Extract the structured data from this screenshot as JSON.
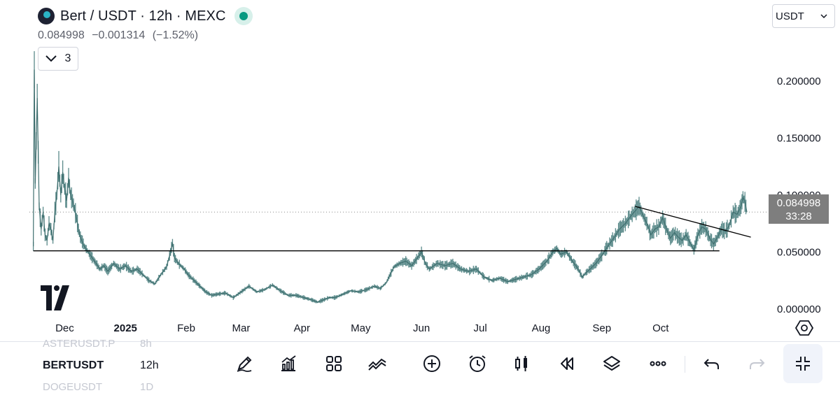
{
  "header": {
    "title": "Bert / USDT · 12h · MEXC",
    "price": "0.084998",
    "change": "−0.001314",
    "change_pct": "(−1.52%)",
    "indicators_count": "3",
    "currency": "USDT",
    "live_color": "#089981"
  },
  "price_tag": {
    "price": "0.084998",
    "countdown": "33:28"
  },
  "toolbar": {
    "symbol": "BERTUSDT",
    "interval": "12h",
    "ghost_above_symbol": "ASTERUSDT.P",
    "ghost_above_interval": "8h",
    "ghost_below_symbol": "DOGEUSDT",
    "ghost_below_interval": "1D",
    "tools": [
      "pencil-icon",
      "chart-icon",
      "grid-icon",
      "compare-icon",
      "add-icon",
      "alarm-icon",
      "candles-icon",
      "replay-icon",
      "layers-icon",
      "more-icon",
      "undo-icon",
      "redo-icon",
      "collapse-icon"
    ]
  },
  "chart_data": {
    "type": "line",
    "title": "",
    "xlabel": "",
    "ylabel": "",
    "ylim": [
      -0.005,
      0.225
    ],
    "y_ticks": [
      0.0,
      0.05,
      0.1,
      0.15,
      0.2
    ],
    "y_tick_labels": [
      "0.000000",
      "0.050000",
      "0.100000",
      "0.150000",
      "0.200000"
    ],
    "x_ticks": [
      {
        "label": "Dec",
        "day": 0,
        "bold": false
      },
      {
        "label": "2025",
        "day": 31,
        "bold": true
      },
      {
        "label": "Feb",
        "day": 62,
        "bold": false
      },
      {
        "label": "Mar",
        "day": 90,
        "bold": false
      },
      {
        "label": "Apr",
        "day": 121,
        "bold": false
      },
      {
        "label": "May",
        "day": 151,
        "bold": false
      },
      {
        "label": "Jun",
        "day": 182,
        "bold": false
      },
      {
        "label": "Jul",
        "day": 212,
        "bold": false
      },
      {
        "label": "Aug",
        "day": 243,
        "bold": false
      },
      {
        "label": "Sep",
        "day": 274,
        "bold": false
      },
      {
        "label": "Oct",
        "day": 304,
        "bold": false
      }
    ],
    "series": [
      {
        "color": "#5a8a8a",
        "points": [
          [
            -16,
            0.055
          ],
          [
            -15.5,
            0.21
          ],
          [
            -15,
            0.11
          ],
          [
            -14,
            0.185
          ],
          [
            -13,
            0.09
          ],
          [
            -12,
            0.07
          ],
          [
            -11,
            0.085
          ],
          [
            -10,
            0.065
          ],
          [
            -9,
            0.06
          ],
          [
            -8,
            0.075
          ],
          [
            -7,
            0.07
          ],
          [
            -6,
            0.06
          ],
          [
            -5,
            0.085
          ],
          [
            -4,
            0.1
          ],
          [
            -3,
            0.125
          ],
          [
            -2,
            0.1
          ],
          [
            -1,
            0.12
          ],
          [
            0,
            0.105
          ],
          [
            1,
            0.095
          ],
          [
            2,
            0.115
          ],
          [
            3,
            0.1
          ],
          [
            4,
            0.095
          ],
          [
            5,
            0.088
          ],
          [
            6,
            0.08
          ],
          [
            7,
            0.07
          ],
          [
            8,
            0.063
          ],
          [
            10,
            0.055
          ],
          [
            12,
            0.05
          ],
          [
            14,
            0.045
          ],
          [
            16,
            0.04
          ],
          [
            18,
            0.035
          ],
          [
            20,
            0.038
          ],
          [
            22,
            0.033
          ],
          [
            25,
            0.04
          ],
          [
            28,
            0.035
          ],
          [
            31,
            0.038
          ],
          [
            34,
            0.033
          ],
          [
            37,
            0.035
          ],
          [
            40,
            0.03
          ],
          [
            43,
            0.025
          ],
          [
            46,
            0.022
          ],
          [
            49,
            0.03
          ],
          [
            52,
            0.037
          ],
          [
            54,
            0.05
          ],
          [
            55,
            0.058
          ],
          [
            56,
            0.045
          ],
          [
            58,
            0.04
          ],
          [
            61,
            0.035
          ],
          [
            63,
            0.03
          ],
          [
            66,
            0.025
          ],
          [
            69,
            0.02
          ],
          [
            72,
            0.015
          ],
          [
            75,
            0.012
          ],
          [
            78,
            0.013
          ],
          [
            82,
            0.014
          ],
          [
            86,
            0.01
          ],
          [
            90,
            0.015
          ],
          [
            94,
            0.02
          ],
          [
            98,
            0.015
          ],
          [
            102,
            0.017
          ],
          [
            106,
            0.021
          ],
          [
            110,
            0.016
          ],
          [
            114,
            0.012
          ],
          [
            118,
            0.012
          ],
          [
            122,
            0.01
          ],
          [
            126,
            0.008
          ],
          [
            129,
            0.006
          ],
          [
            132,
            0.008
          ],
          [
            135,
            0.01
          ],
          [
            138,
            0.01
          ],
          [
            142,
            0.013
          ],
          [
            146,
            0.016
          ],
          [
            150,
            0.015
          ],
          [
            154,
            0.017
          ],
          [
            158,
            0.02
          ],
          [
            161,
            0.018
          ],
          [
            164,
            0.023
          ],
          [
            166,
            0.03
          ],
          [
            168,
            0.037
          ],
          [
            171,
            0.04
          ],
          [
            174,
            0.042
          ],
          [
            177,
            0.038
          ],
          [
            180,
            0.045
          ],
          [
            182,
            0.05
          ],
          [
            184,
            0.04
          ],
          [
            186,
            0.035
          ],
          [
            190,
            0.04
          ],
          [
            194,
            0.038
          ],
          [
            198,
            0.04
          ],
          [
            202,
            0.035
          ],
          [
            206,
            0.033
          ],
          [
            210,
            0.035
          ],
          [
            214,
            0.028
          ],
          [
            218,
            0.025
          ],
          [
            222,
            0.027
          ],
          [
            226,
            0.024
          ],
          [
            230,
            0.026
          ],
          [
            234,
            0.028
          ],
          [
            238,
            0.03
          ],
          [
            242,
            0.035
          ],
          [
            246,
            0.042
          ],
          [
            249,
            0.05
          ],
          [
            251,
            0.053
          ],
          [
            253,
            0.048
          ],
          [
            256,
            0.05
          ],
          [
            259,
            0.042
          ],
          [
            262,
            0.035
          ],
          [
            264,
            0.028
          ],
          [
            266,
            0.032
          ],
          [
            268,
            0.035
          ],
          [
            271,
            0.04
          ],
          [
            274,
            0.047
          ],
          [
            277,
            0.055
          ],
          [
            280,
            0.062
          ],
          [
            283,
            0.07
          ],
          [
            286,
            0.075
          ],
          [
            289,
            0.082
          ],
          [
            292,
            0.088
          ],
          [
            293,
            0.09
          ],
          [
            295,
            0.082
          ],
          [
            297,
            0.075
          ],
          [
            299,
            0.065
          ],
          [
            301,
            0.07
          ],
          [
            303,
            0.072
          ],
          [
            305,
            0.08
          ],
          [
            307,
            0.07
          ],
          [
            309,
            0.062
          ],
          [
            311,
            0.067
          ],
          [
            313,
            0.063
          ],
          [
            315,
            0.06
          ],
          [
            317,
            0.065
          ],
          [
            319,
            0.058
          ],
          [
            321,
            0.052
          ],
          [
            323,
            0.065
          ],
          [
            325,
            0.072
          ],
          [
            327,
            0.07
          ],
          [
            329,
            0.062
          ],
          [
            331,
            0.057
          ],
          [
            333,
            0.063
          ],
          [
            335,
            0.07
          ],
          [
            337,
            0.068
          ],
          [
            339,
            0.073
          ],
          [
            341,
            0.085
          ],
          [
            343,
            0.083
          ],
          [
            345,
            0.09
          ],
          [
            346,
            0.098
          ],
          [
            347,
            0.094
          ],
          [
            348,
            0.085
          ]
        ]
      }
    ],
    "support_line": {
      "y": 0.051,
      "from_day": -16,
      "to_day": 334
    },
    "trend_line": {
      "from": [
        291,
        0.09
      ],
      "to": [
        350,
        0.063
      ]
    },
    "last_price_line": 0.084998
  }
}
